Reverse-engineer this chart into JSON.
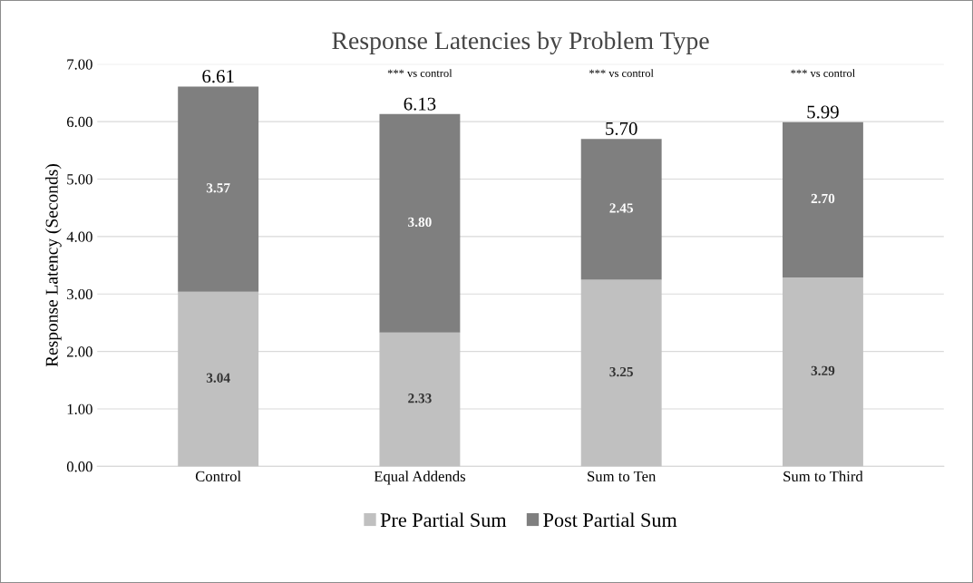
{
  "chart_data": {
    "type": "bar",
    "title": "Response Latencies by Problem Type",
    "ylabel": "Response Latency (Seconds)",
    "categories": [
      "Control",
      "Equal Addends",
      "Sum to Ten",
      "Sum to Third"
    ],
    "series": [
      {
        "name": "Pre Partial Sum",
        "color": "#c0c0c0",
        "values": [
          3.04,
          2.33,
          3.25,
          3.29
        ],
        "value_labels": [
          "3.04",
          "2.33",
          "3.25",
          "3.29"
        ]
      },
      {
        "name": "Post Partial Sum",
        "color": "#7f7f7f",
        "values": [
          3.57,
          3.8,
          2.45,
          2.7
        ],
        "value_labels": [
          "3.57",
          "3.80",
          "2.45",
          "2.70"
        ]
      }
    ],
    "stacked": true,
    "totals": [
      "6.61",
      "6.13",
      "5.70",
      "5.99"
    ],
    "ylim": [
      0,
      7
    ],
    "yticks": [
      {
        "value": 0,
        "label": "0.00"
      },
      {
        "value": 1,
        "label": "1.00"
      },
      {
        "value": 2,
        "label": "2.00"
      },
      {
        "value": 3,
        "label": "3.00"
      },
      {
        "value": 4,
        "label": "4.00"
      },
      {
        "value": 5,
        "label": "5.00"
      },
      {
        "value": 6,
        "label": "6.00"
      },
      {
        "value": 7,
        "label": "7.00"
      }
    ],
    "grid": "y",
    "legend": "bottom",
    "annotations": [
      "*** vs control",
      "*** vs control",
      "*** vs control"
    ]
  }
}
